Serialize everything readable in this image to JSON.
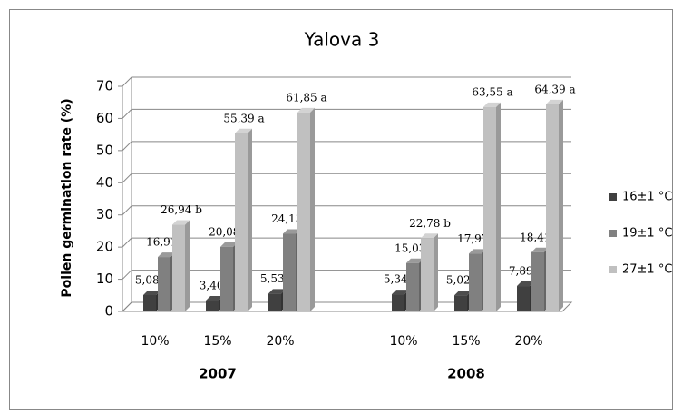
{
  "chart_data": {
    "type": "bar3d",
    "title": "Yalova 3",
    "y_label": "Pollen germination rate (%)",
    "groups": [
      "2007",
      "2008"
    ],
    "categories": [
      "10%",
      "15%",
      "20%",
      "10%",
      "15%",
      "20%"
    ],
    "series": [
      {
        "name": "16±1 °C",
        "color": "#404040",
        "values": [
          5.08,
          3.4,
          5.53,
          5.34,
          5.02,
          7.89
        ],
        "value_labels": [
          "5,08 b",
          "3,40b",
          "5,53 b",
          "5,34 b",
          "5,02 b",
          "7,89 b"
        ]
      },
      {
        "name": "19±1 °C",
        "color": "#808080",
        "values": [
          16.91,
          20.08,
          24.13,
          15.03,
          17.97,
          18.41
        ],
        "value_labels": [
          "16,91 b",
          "20,08 b",
          "24,13 b",
          "15,03 b",
          "17,97 b",
          "18,41 b"
        ]
      },
      {
        "name": "27±1 °C",
        "color": "#c0c0c0",
        "values": [
          26.94,
          55.39,
          61.85,
          22.78,
          63.55,
          64.39
        ],
        "value_labels": [
          "26,94 b",
          "55,39 a",
          "61,85 a",
          "22,78 b",
          "63,55 a",
          "64,39 a"
        ]
      }
    ],
    "ylim": [
      0,
      70
    ],
    "yticks": [
      0,
      10,
      20,
      30,
      40,
      50,
      60,
      70
    ],
    "grid": true,
    "legend": "right"
  }
}
